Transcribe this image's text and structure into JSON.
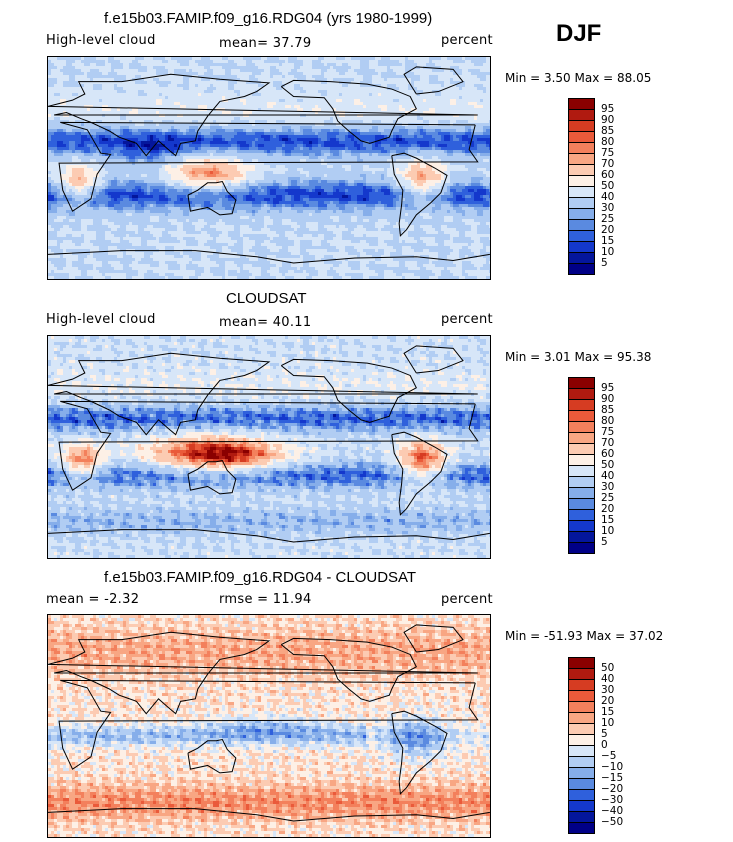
{
  "season": "DJF",
  "panels": [
    {
      "title": "f.e15b03.FAMIP.f09_g16.RDG04 (yrs 1980-1999)",
      "left_label": "High-level cloud",
      "center_label": "mean=  37.79",
      "right_label": "percent",
      "minmax": "Min =    3.50 Max =  88.05",
      "colorbar": {
        "labels": [
          "95",
          "90",
          "85",
          "80",
          "75",
          "70",
          "60",
          "50",
          "40",
          "30",
          "25",
          "20",
          "15",
          "10",
          "5"
        ],
        "colors": [
          "#8a0000",
          "#b01a10",
          "#d63c22",
          "#ea5a3a",
          "#f3805c",
          "#f8a683",
          "#fccbb2",
          "#fdf0e6",
          "#d7e6f8",
          "#b1cdf3",
          "#86aeea",
          "#5a8ae0",
          "#2f60dc",
          "#1438cc",
          "#04169c",
          "#000086"
        ]
      },
      "field": "model"
    },
    {
      "title": "CLOUDSAT",
      "left_label": "High-level cloud",
      "center_label": "mean=  40.11",
      "right_label": "percent",
      "minmax": "Min =    3.01 Max =  95.38",
      "colorbar": {
        "labels": [
          "95",
          "90",
          "85",
          "80",
          "75",
          "70",
          "60",
          "50",
          "40",
          "30",
          "25",
          "20",
          "15",
          "10",
          "5"
        ],
        "colors": [
          "#8a0000",
          "#b01a10",
          "#d63c22",
          "#ea5a3a",
          "#f3805c",
          "#f8a683",
          "#fccbb2",
          "#fdf0e6",
          "#d7e6f8",
          "#b1cdf3",
          "#86aeea",
          "#5a8ae0",
          "#2f60dc",
          "#1438cc",
          "#04169c",
          "#000086"
        ]
      },
      "field": "obs"
    },
    {
      "title": "f.e15b03.FAMIP.f09_g16.RDG04 - CLOUDSAT",
      "left_label": "mean =   -2.32",
      "center_label": "rmse =   11.94",
      "right_label": "percent",
      "minmax": "Min = -51.93 Max =  37.02",
      "colorbar": {
        "labels": [
          "50",
          "40",
          "30",
          "20",
          "15",
          "10",
          "5",
          "0",
          "−5",
          "−10",
          "−15",
          "−20",
          "−30",
          "−40",
          "−50"
        ],
        "colors": [
          "#8a0000",
          "#b01a10",
          "#d63c22",
          "#ea5a3a",
          "#f3805c",
          "#f8a683",
          "#fccbb2",
          "#fdf0e6",
          "#d7e6f8",
          "#b1cdf3",
          "#86aeea",
          "#5a8ae0",
          "#2f60dc",
          "#1438cc",
          "#04169c",
          "#000086"
        ]
      },
      "field": "diff"
    }
  ]
}
